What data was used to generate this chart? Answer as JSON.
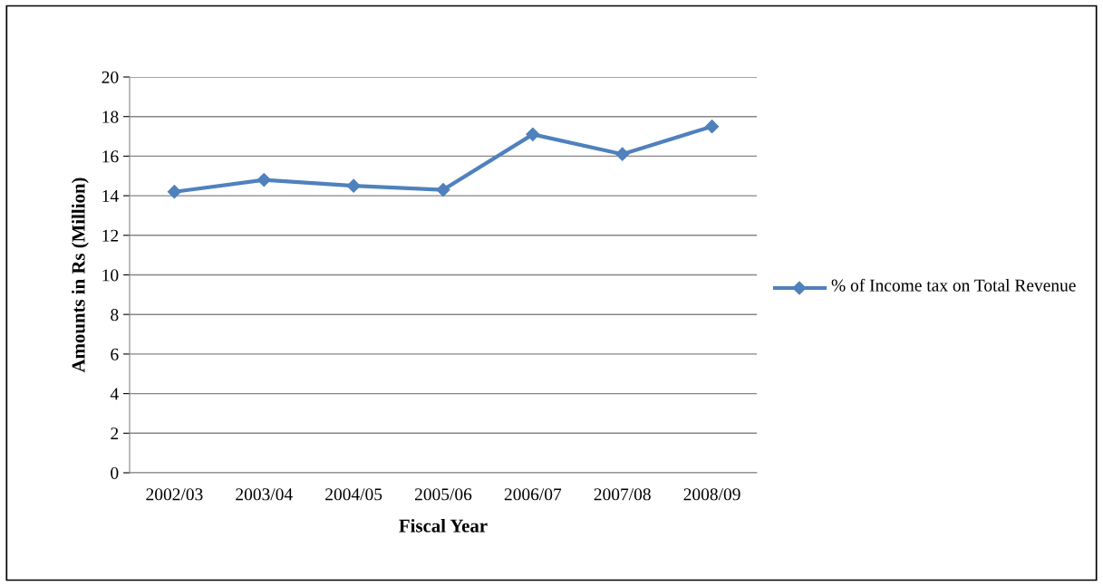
{
  "chart_data": {
    "type": "line",
    "xlabel": "Fiscal Year",
    "ylabel": "Amounts in Rs (Million)",
    "categories": [
      "2002/03",
      "2003/04",
      "2004/05",
      "2005/06",
      "2006/07",
      "2007/08",
      "2008/09"
    ],
    "series": [
      {
        "name": "% of Income tax on Total Revenue",
        "color": "#4f81bd",
        "values": [
          14.2,
          14.8,
          14.5,
          14.3,
          17.1,
          16.1,
          17.5
        ]
      }
    ],
    "ylim": [
      0,
      20
    ],
    "yticks": [
      0,
      2,
      4,
      6,
      8,
      10,
      12,
      14,
      16,
      18,
      20
    ],
    "grid": "y",
    "legend": "right",
    "marker": "diamond",
    "line_style": "solid"
  }
}
